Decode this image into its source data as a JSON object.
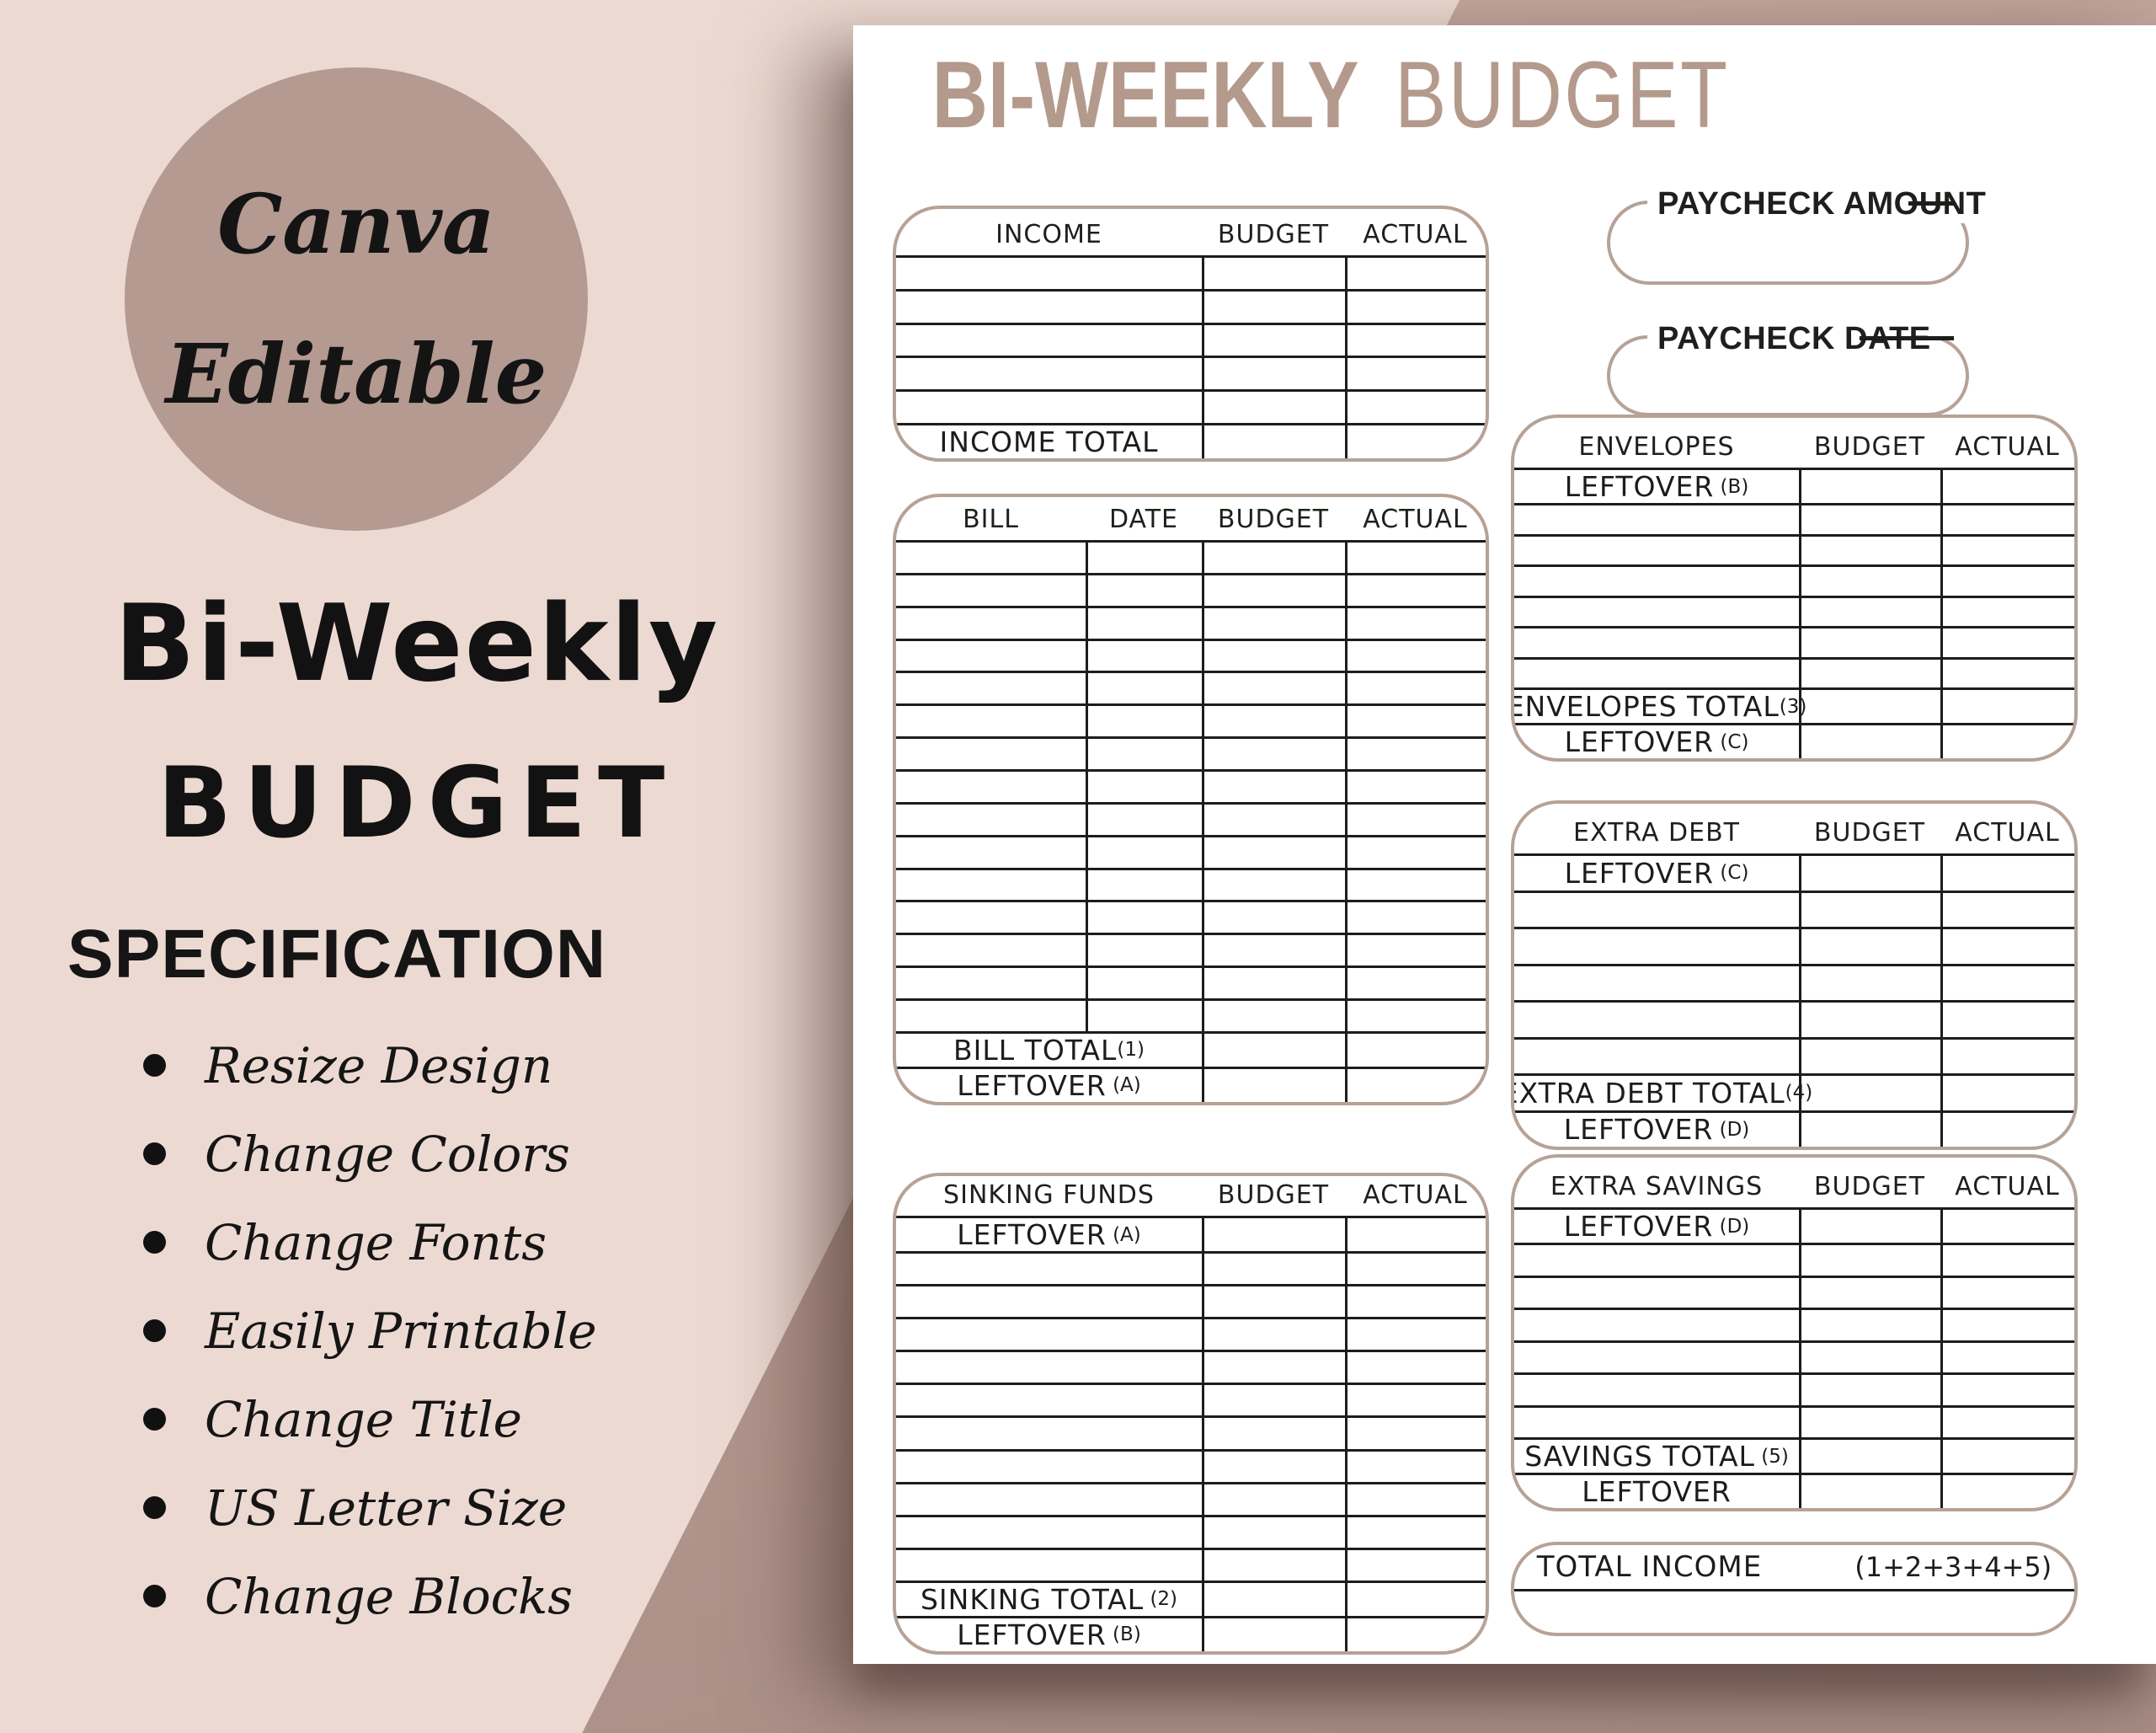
{
  "badge": {
    "line1": "Canva",
    "line2": "Editable"
  },
  "left_panel": {
    "title_script": "Bi-Weekly",
    "title_caps": "BUDGET",
    "heading": "SPECIFICATION",
    "bullets": [
      "Resize Design",
      "Change Colors",
      "Change Fonts",
      "Easily Printable",
      "Change Title",
      "US Letter Size",
      "Change Blocks"
    ]
  },
  "page": {
    "title_bold": "BI-WEEKLY",
    "title_light": "BUDGET",
    "paycheck_amount_label": "PAYCHECK AMOUNT",
    "paycheck_date_label": "PAYCHECK DATE",
    "total_income": {
      "label": "TOTAL INCOME",
      "formula": "(1+2+3+4+5)"
    },
    "tables": [
      {
        "id": "income",
        "headers": [
          "INCOME",
          "BUDGET",
          "ACTUAL"
        ],
        "rows": [
          {},
          {},
          {},
          {},
          {},
          {
            "label": "INCOME TOTAL"
          }
        ]
      },
      {
        "id": "bill",
        "headers": [
          "BILL",
          "DATE",
          "BUDGET",
          "ACTUAL"
        ],
        "rows": [
          {},
          {},
          {},
          {},
          {},
          {},
          {},
          {},
          {},
          {},
          {},
          {},
          {},
          {},
          {},
          {
            "label": "BILL TOTAL",
            "sup": "(1)",
            "span": 2
          },
          {
            "label": "LEFTOVER",
            "sup": " (A)",
            "span": 2
          }
        ]
      },
      {
        "id": "sinking",
        "headers": [
          "SINKING FUNDS",
          "BUDGET",
          "ACTUAL"
        ],
        "rows": [
          {
            "label": "LEFTOVER",
            "sup": " (A)"
          },
          {},
          {},
          {},
          {},
          {},
          {},
          {},
          {},
          {},
          {},
          {
            "label": "SINKING TOTAL",
            "sup": " (2)"
          },
          {
            "label": "LEFTOVER",
            "sup": " (B)"
          }
        ]
      },
      {
        "id": "envelopes",
        "headers": [
          "ENVELOPES",
          "BUDGET",
          "ACTUAL"
        ],
        "rows": [
          {
            "label": "LEFTOVER",
            "sup": " (B)"
          },
          {},
          {},
          {},
          {},
          {},
          {},
          {
            "label": "ENVELOPES TOTAL",
            "sup": "(3)"
          },
          {
            "label": "LEFTOVER",
            "sup": " (C)"
          }
        ]
      },
      {
        "id": "extradebt",
        "headers": [
          "EXTRA DEBT",
          "BUDGET",
          "ACTUAL"
        ],
        "rows": [
          {
            "label": "LEFTOVER",
            "sup": " (C)"
          },
          {},
          {},
          {},
          {},
          {},
          {
            "label": "EXTRA DEBT TOTAL",
            "sup": "(4)"
          },
          {
            "label": "LEFTOVER",
            "sup": " (D)"
          }
        ]
      },
      {
        "id": "extrasavings",
        "headers": [
          "EXTRA SAVINGS",
          "BUDGET",
          "ACTUAL"
        ],
        "rows": [
          {
            "label": "LEFTOVER",
            "sup": " (D)"
          },
          {},
          {},
          {},
          {},
          {},
          {},
          {
            "label": "SAVINGS TOTAL",
            "sup": " (5)"
          },
          {
            "label": "LEFTOVER"
          }
        ]
      }
    ],
    "colors": {
      "title_accent": "#b49a8c",
      "table_border": "#b6a296",
      "line_black": "#1d1d1b",
      "page_white": "#ffffff",
      "background_pink": "#ecdad2",
      "background_mauve": "#b89c93",
      "circle_taupe": "#b49a91"
    }
  }
}
